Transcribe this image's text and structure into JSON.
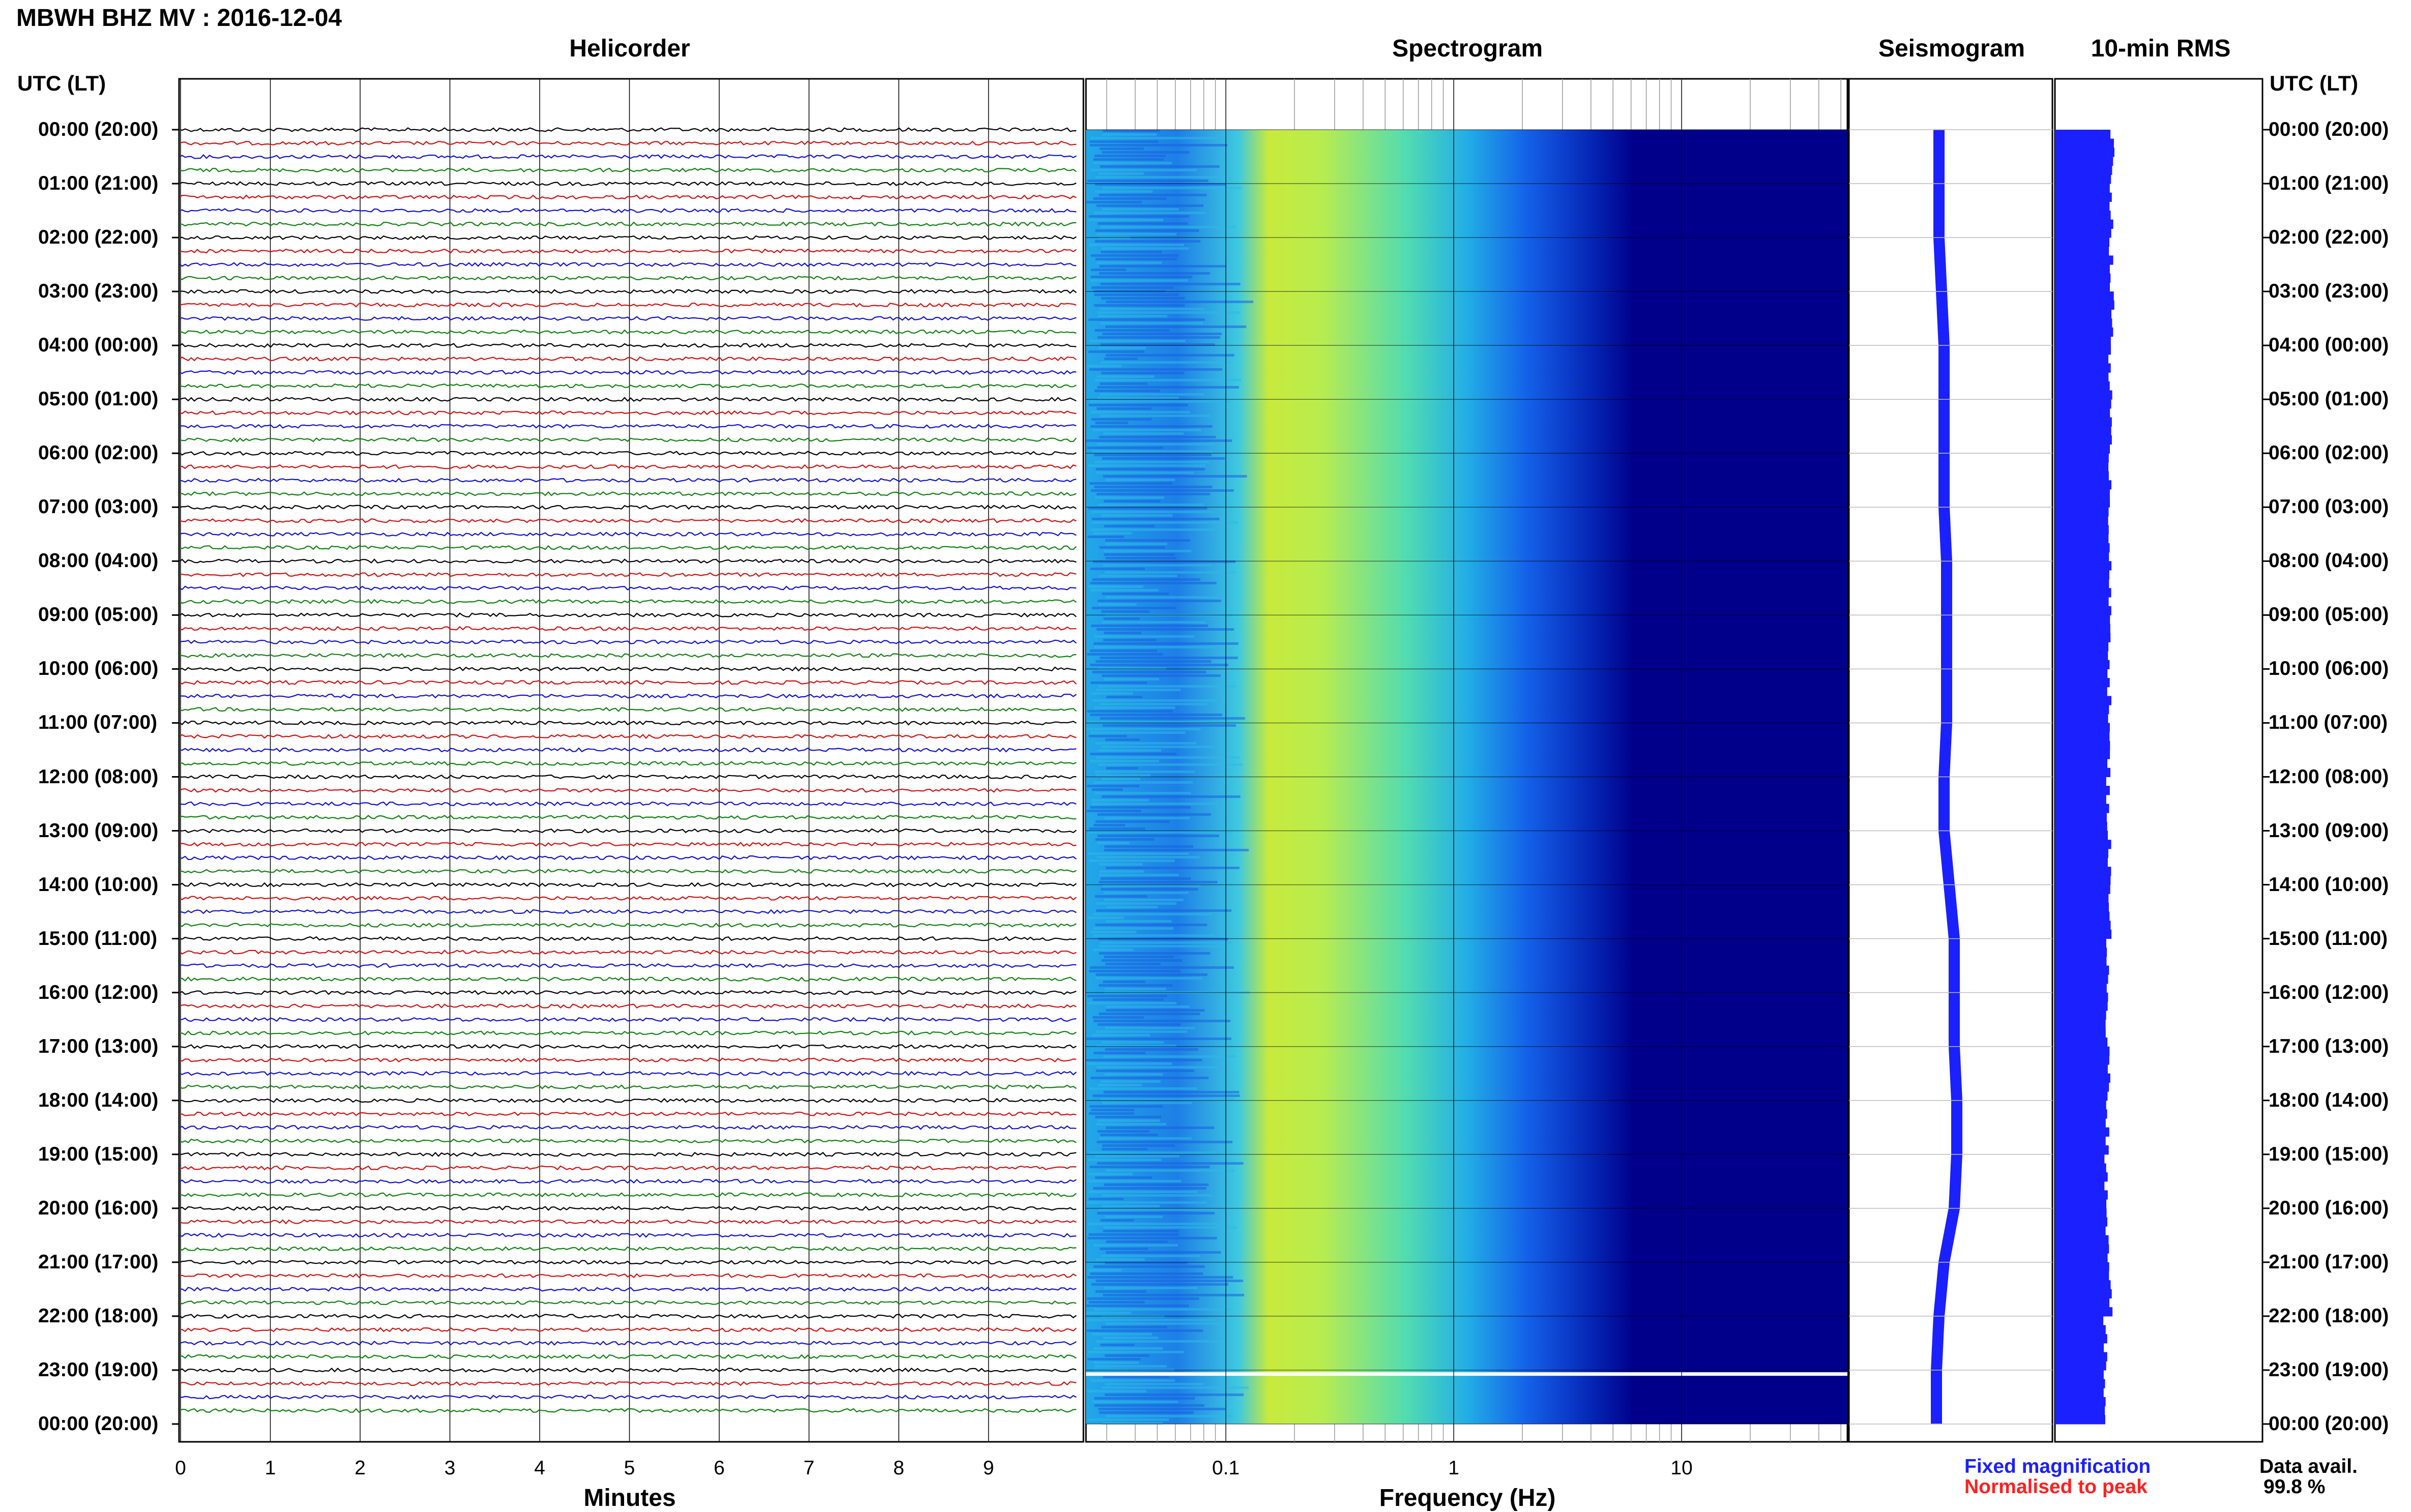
{
  "header": {
    "station": "MBWH BHZ MV : 2016-12-04"
  },
  "panels": {
    "helicorder": "Helicorder",
    "spectrogram": "Spectrogram",
    "seismogram": "Seismogram",
    "rms": "10-min RMS"
  },
  "axes": {
    "utc_left": "UTC (LT)",
    "utc_right": "UTC (LT)",
    "minutes_label": "Minutes",
    "frequency_label": "Frequency (Hz)"
  },
  "legend": {
    "fixed": "Fixed magnification",
    "normalised": "Normalised to peak",
    "avail_label": "Data avail.",
    "avail_value": "99.8 %"
  },
  "colors": {
    "trace_colors": [
      "#000000",
      "#d01010",
      "#1010d0",
      "#108010"
    ],
    "spectrogram_background": "#00008b",
    "seismogram": "#1b20ff",
    "rms": "#1b20ff"
  },
  "chart_data": {
    "type": "heatmap",
    "time_labels": [
      "00:00 (20:00)",
      "01:00 (21:00)",
      "02:00 (22:00)",
      "03:00 (23:00)",
      "04:00 (00:00)",
      "05:00 (01:00)",
      "06:00 (02:00)",
      "07:00 (03:00)",
      "08:00 (04:00)",
      "09:00 (05:00)",
      "10:00 (06:00)",
      "11:00 (07:00)",
      "12:00 (08:00)",
      "13:00 (09:00)",
      "14:00 (10:00)",
      "15:00 (11:00)",
      "16:00 (12:00)",
      "17:00 (13:00)",
      "18:00 (14:00)",
      "19:00 (15:00)",
      "20:00 (16:00)",
      "21:00 (17:00)",
      "22:00 (18:00)",
      "23:00 (19:00)",
      "00:00 (20:00)"
    ],
    "minute_ticks": [
      "0",
      "1",
      "2",
      "3",
      "4",
      "5",
      "6",
      "7",
      "8",
      "9"
    ],
    "frequency_ticks": [
      {
        "label": "0.1",
        "value": 0.1
      },
      {
        "label": "1",
        "value": 1
      },
      {
        "label": "10",
        "value": 10
      }
    ],
    "frequency_range_hz": [
      0.02,
      50
    ],
    "frequency_scale": "log",
    "seismogram_offset": [
      0,
      0,
      0,
      0.05,
      0.1,
      0.1,
      0.1,
      0.1,
      0.15,
      0.15,
      0.15,
      0.15,
      0.1,
      0.1,
      0.2,
      0.3,
      0.3,
      0.3,
      0.35,
      0.35,
      0.3,
      0.1,
      0,
      -0.05,
      -0.05
    ],
    "rms_relative": [
      0.98,
      0.97,
      0.96,
      0.98,
      0.95,
      0.94,
      0.95,
      0.94,
      0.93,
      0.94,
      0.93,
      0.92,
      0.91,
      0.93,
      0.95,
      0.9,
      0.88,
      0.92,
      0.9,
      0.88,
      0.9,
      0.96,
      0.86,
      0.84,
      0.85
    ]
  }
}
